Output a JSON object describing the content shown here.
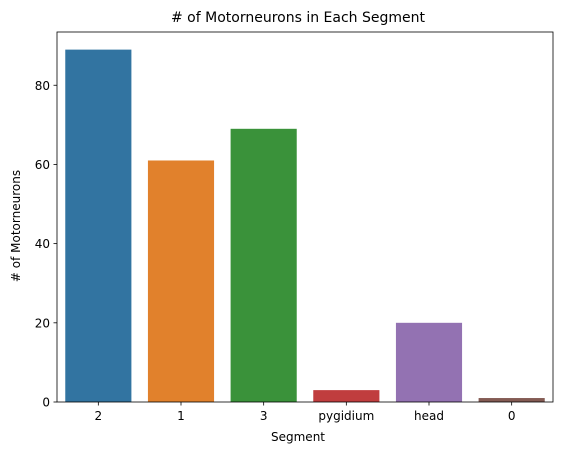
{
  "chart_data": {
    "type": "bar",
    "title": "# of Motorneurons in Each Segment",
    "xlabel": "Segment",
    "ylabel": "# of Motorneurons",
    "categories": [
      "2",
      "1",
      "3",
      "pygidium",
      "head",
      "0"
    ],
    "values": [
      89,
      61,
      69,
      3,
      20,
      1
    ],
    "colors": [
      "#3274a1",
      "#e1812c",
      "#3a923a",
      "#c03d3e",
      "#9372b2",
      "#845b53"
    ],
    "ylim": [
      0,
      93.45
    ],
    "yticks": [
      0,
      20,
      40,
      60,
      80
    ],
    "grid": false,
    "legend": "none"
  }
}
